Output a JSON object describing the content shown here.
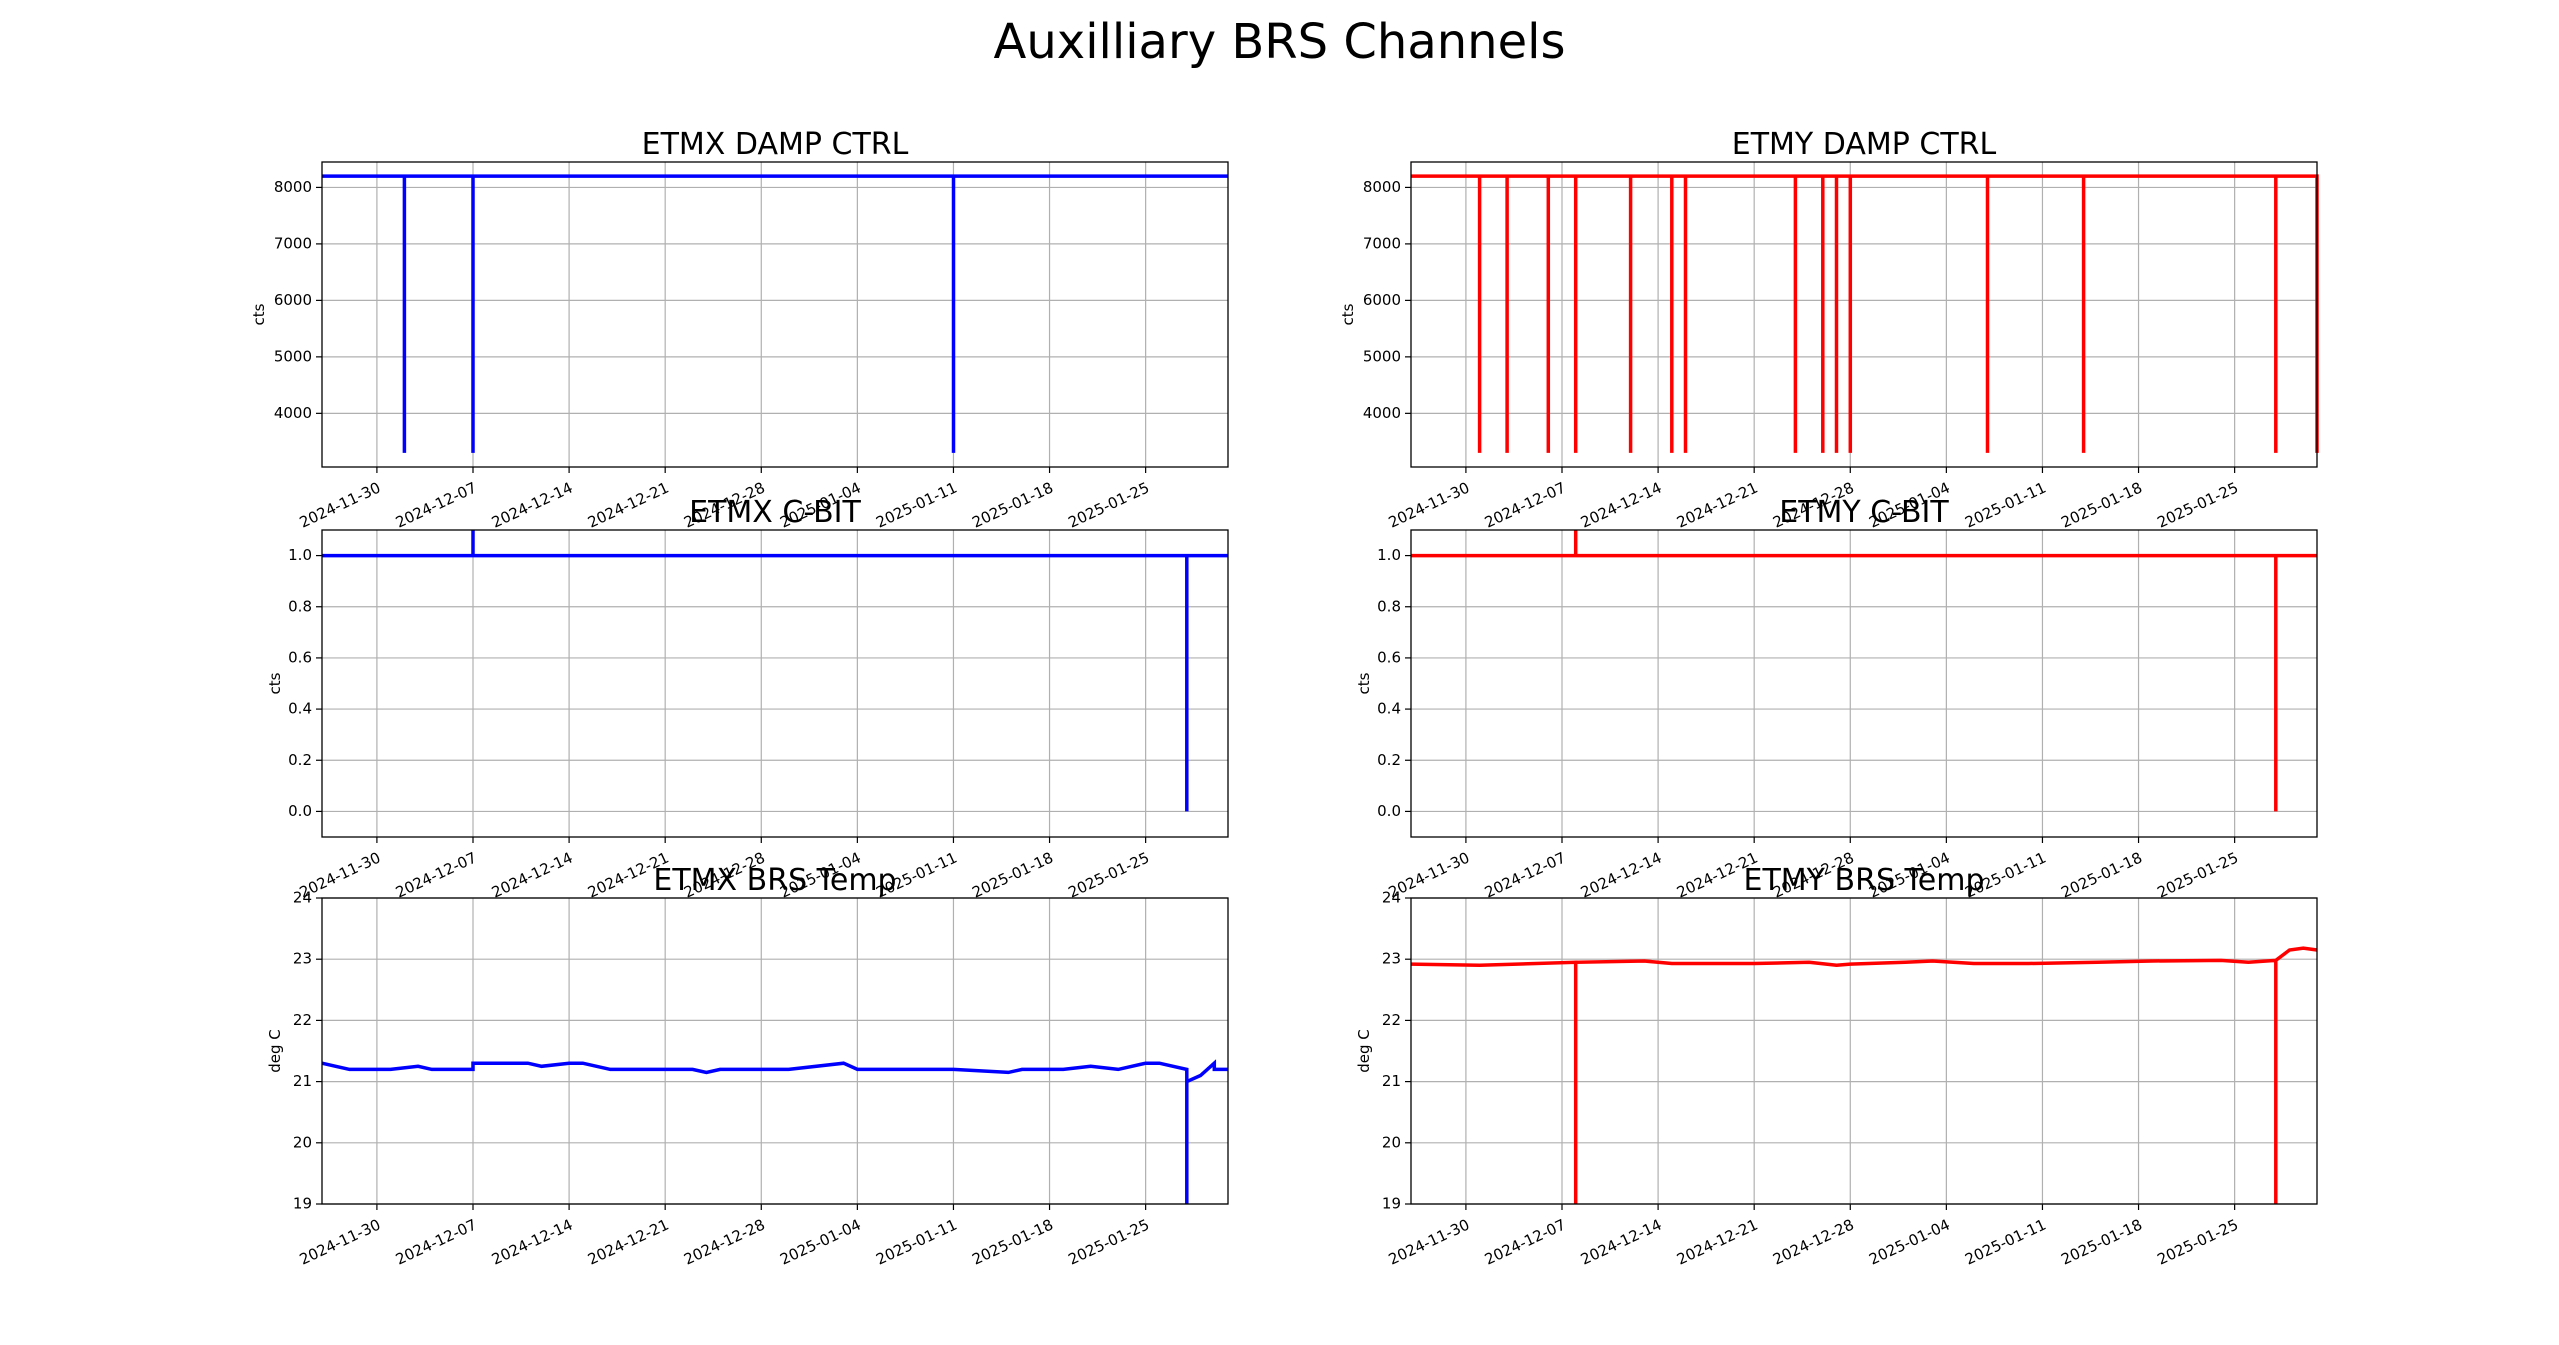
{
  "figure": {
    "title": "Auxilliary BRS Channels"
  },
  "chart_data": [
    {
      "id": "etmx-damp",
      "type": "line",
      "title": "ETMX DAMP CTRL",
      "ylabel": "cts",
      "color": "#0000ff",
      "xlim": [
        "2024-11-26",
        "2025-01-31"
      ],
      "ylim": [
        3050,
        8450
      ],
      "yticks": [
        4000,
        5000,
        6000,
        7000,
        8000
      ],
      "ytick_labels": [
        "4000",
        "5000",
        "6000",
        "7000",
        "8000"
      ],
      "xticks": [
        "2024-11-30",
        "2024-12-07",
        "2024-12-14",
        "2024-12-21",
        "2024-12-28",
        "2025-01-04",
        "2025-01-11",
        "2025-01-18",
        "2025-01-25"
      ],
      "series": [
        {
          "x": [
            "2024-11-26",
            "2024-12-02",
            "2024-12-02",
            "2024-12-02",
            "2024-12-07",
            "2024-12-07",
            "2024-12-07",
            "2025-01-11",
            "2025-01-11",
            "2025-01-11",
            "2025-01-31"
          ],
          "y": [
            8200,
            8200,
            3300,
            8200,
            8200,
            3300,
            8200,
            8200,
            3300,
            8200,
            8200
          ]
        }
      ]
    },
    {
      "id": "etmy-damp",
      "type": "line",
      "title": "ETMY DAMP CTRL",
      "ylabel": "cts",
      "color": "#ff0000",
      "xlim": [
        "2024-11-26",
        "2025-01-31"
      ],
      "ylim": [
        3050,
        8450
      ],
      "yticks": [
        4000,
        5000,
        6000,
        7000,
        8000
      ],
      "ytick_labels": [
        "4000",
        "5000",
        "6000",
        "7000",
        "8000"
      ],
      "xticks": [
        "2024-11-30",
        "2024-12-07",
        "2024-12-14",
        "2024-12-21",
        "2024-12-28",
        "2025-01-04",
        "2025-01-11",
        "2025-01-18",
        "2025-01-25"
      ],
      "series": [
        {
          "x": [
            "2024-11-26",
            "2024-12-01",
            "2024-12-01",
            "2024-12-01",
            "2024-12-03",
            "2024-12-03",
            "2024-12-03",
            "2024-12-06",
            "2024-12-06",
            "2024-12-06",
            "2024-12-08",
            "2024-12-08",
            "2024-12-08",
            "2024-12-12",
            "2024-12-12",
            "2024-12-12",
            "2024-12-15",
            "2024-12-15",
            "2024-12-15",
            "2024-12-16",
            "2024-12-16",
            "2024-12-16",
            "2024-12-24",
            "2024-12-24",
            "2024-12-24",
            "2024-12-26",
            "2024-12-26",
            "2024-12-26",
            "2024-12-27",
            "2024-12-27",
            "2024-12-27",
            "2024-12-28",
            "2024-12-28",
            "2024-12-28",
            "2025-01-07",
            "2025-01-07",
            "2025-01-07",
            "2025-01-14",
            "2025-01-14",
            "2025-01-14",
            "2025-01-28",
            "2025-01-28",
            "2025-01-28",
            "2025-01-31",
            "2025-01-31",
            "2025-01-31"
          ],
          "y": [
            8200,
            8200,
            3300,
            8200,
            8200,
            3300,
            8200,
            8200,
            3300,
            8200,
            8200,
            3300,
            8200,
            8200,
            3300,
            8200,
            8200,
            3300,
            8200,
            8200,
            3300,
            8200,
            8200,
            3300,
            8200,
            8200,
            3300,
            8200,
            8200,
            3300,
            8200,
            8200,
            3300,
            8200,
            8200,
            3300,
            8200,
            8200,
            3300,
            8200,
            8200,
            3300,
            8200,
            8200,
            3300,
            8200
          ]
        }
      ]
    },
    {
      "id": "etmx-cbit",
      "type": "line",
      "title": "ETMX C-BIT",
      "ylabel": "cts",
      "color": "#0000ff",
      "xlim": [
        "2024-11-26",
        "2025-01-31"
      ],
      "ylim": [
        -0.1,
        1.1
      ],
      "yticks": [
        0.0,
        0.2,
        0.4,
        0.6,
        0.8,
        1.0
      ],
      "ytick_labels": [
        "0.0",
        "0.2",
        "0.4",
        "0.6",
        "0.8",
        "1.0"
      ],
      "xticks": [
        "2024-11-30",
        "2024-12-07",
        "2024-12-14",
        "2024-12-21",
        "2024-12-28",
        "2025-01-04",
        "2025-01-11",
        "2025-01-18",
        "2025-01-25"
      ],
      "series": [
        {
          "x": [
            "2024-11-26",
            "2024-12-07",
            "2024-12-07",
            "2024-12-07",
            "2025-01-28",
            "2025-01-28",
            "2025-01-28",
            "2025-01-31"
          ],
          "y": [
            1,
            1,
            1.1,
            1,
            1,
            0,
            1,
            1
          ]
        }
      ]
    },
    {
      "id": "etmy-cbit",
      "type": "line",
      "title": "ETMY C-BIT",
      "ylabel": "cts",
      "color": "#ff0000",
      "xlim": [
        "2024-11-26",
        "2025-01-31"
      ],
      "ylim": [
        -0.1,
        1.1
      ],
      "yticks": [
        0.0,
        0.2,
        0.4,
        0.6,
        0.8,
        1.0
      ],
      "ytick_labels": [
        "0.0",
        "0.2",
        "0.4",
        "0.6",
        "0.8",
        "1.0"
      ],
      "xticks": [
        "2024-11-30",
        "2024-12-07",
        "2024-12-14",
        "2024-12-21",
        "2024-12-28",
        "2025-01-04",
        "2025-01-11",
        "2025-01-18",
        "2025-01-25"
      ],
      "series": [
        {
          "x": [
            "2024-11-26",
            "2024-12-08",
            "2024-12-08",
            "2024-12-08",
            "2025-01-28",
            "2025-01-28",
            "2025-01-28",
            "2025-01-31"
          ],
          "y": [
            1,
            1,
            1.1,
            1,
            1,
            0,
            1,
            1
          ]
        }
      ]
    },
    {
      "id": "etmx-temp",
      "type": "line",
      "title": "ETMX BRS Temp",
      "ylabel": "deg C",
      "color": "#0000ff",
      "xlim": [
        "2024-11-26",
        "2025-01-31"
      ],
      "ylim": [
        19,
        24
      ],
      "yticks": [
        19,
        20,
        21,
        22,
        23,
        24
      ],
      "ytick_labels": [
        "19",
        "20",
        "21",
        "22",
        "23",
        "24"
      ],
      "xticks": [
        "2024-11-30",
        "2024-12-07",
        "2024-12-14",
        "2024-12-21",
        "2024-12-28",
        "2025-01-04",
        "2025-01-11",
        "2025-01-18",
        "2025-01-25"
      ],
      "series": [
        {
          "x": [
            "2024-11-26",
            "2024-11-27",
            "2024-11-28",
            "2024-12-01",
            "2024-12-03",
            "2024-12-04",
            "2024-12-07",
            "2024-12-07",
            "2024-12-07",
            "2024-12-11",
            "2024-12-12",
            "2024-12-14",
            "2024-12-15",
            "2024-12-17",
            "2024-12-18",
            "2024-12-23",
            "2024-12-24",
            "2024-12-25",
            "2024-12-30",
            "2025-01-03",
            "2025-01-04",
            "2025-01-11",
            "2025-01-15",
            "2025-01-16",
            "2025-01-19",
            "2025-01-21",
            "2025-01-23",
            "2025-01-25",
            "2025-01-26",
            "2025-01-27",
            "2025-01-27",
            "2025-01-28",
            "2025-01-28",
            "2025-01-28",
            "2025-01-28",
            "2025-01-29",
            "2025-01-30",
            "2025-01-30",
            "2025-01-31"
          ],
          "y": [
            21.3,
            21.25,
            21.2,
            21.2,
            21.25,
            21.2,
            21.2,
            21.3,
            21.3,
            21.3,
            21.25,
            21.3,
            21.3,
            21.2,
            21.2,
            21.2,
            21.15,
            21.2,
            21.2,
            21.3,
            21.2,
            21.2,
            21.15,
            21.2,
            21.2,
            21.25,
            21.2,
            21.3,
            21.3,
            21.25,
            21.25,
            21.2,
            19.0,
            21.2,
            21.0,
            21.1,
            21.3,
            21.2,
            21.2
          ]
        }
      ]
    },
    {
      "id": "etmy-temp",
      "type": "line",
      "title": "ETMY BRS Temp",
      "ylabel": "deg C",
      "color": "#ff0000",
      "xlim": [
        "2024-11-26",
        "2025-01-31"
      ],
      "ylim": [
        19,
        24
      ],
      "yticks": [
        19,
        20,
        21,
        22,
        23,
        24
      ],
      "ytick_labels": [
        "19",
        "20",
        "21",
        "22",
        "23",
        "24"
      ],
      "xticks": [
        "2024-11-30",
        "2024-12-07",
        "2024-12-14",
        "2024-12-21",
        "2024-12-28",
        "2025-01-04",
        "2025-01-11",
        "2025-01-18",
        "2025-01-25"
      ],
      "series": [
        {
          "x": [
            "2024-11-26",
            "2024-12-01",
            "2024-12-08",
            "2024-12-08",
            "2024-12-08",
            "2024-12-13",
            "2024-12-15",
            "2024-12-21",
            "2024-12-25",
            "2024-12-27",
            "2024-12-28",
            "2025-01-01",
            "2025-01-03",
            "2025-01-06",
            "2025-01-10",
            "2025-01-15",
            "2025-01-19",
            "2025-01-24",
            "2025-01-26",
            "2025-01-28",
            "2025-01-28",
            "2025-01-28",
            "2025-01-29",
            "2025-01-30",
            "2025-01-31"
          ],
          "y": [
            22.92,
            22.9,
            22.95,
            19.0,
            22.95,
            22.97,
            22.93,
            22.93,
            22.95,
            22.9,
            22.92,
            22.95,
            22.97,
            22.93,
            22.93,
            22.95,
            22.97,
            22.98,
            22.95,
            22.98,
            19.0,
            22.98,
            23.15,
            23.18,
            23.15
          ]
        }
      ]
    }
  ]
}
